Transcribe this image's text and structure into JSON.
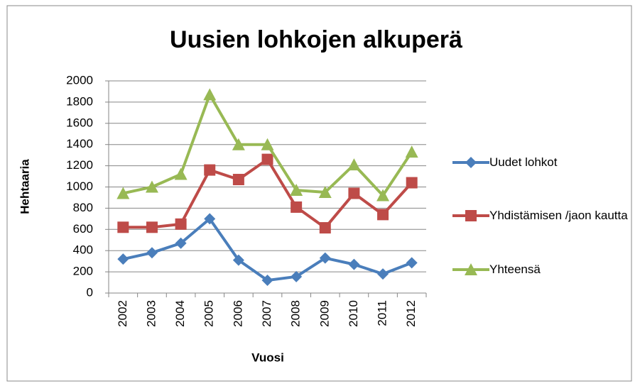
{
  "chart_data": {
    "type": "line",
    "title": "Uusien lohkojen alkuperä",
    "xlabel": "Vuosi",
    "ylabel": "Hehtaaria",
    "categories": [
      "2002",
      "2003",
      "2004",
      "2005",
      "2006",
      "2007",
      "2008",
      "2009",
      "2010",
      "2011",
      "2012"
    ],
    "series": [
      {
        "name": "Uudet lohkot",
        "color": "#4a7ebb",
        "marker": "diamond",
        "values": [
          320,
          380,
          470,
          700,
          310,
          120,
          155,
          330,
          270,
          180,
          285
        ]
      },
      {
        "name": "Yhdistämisen /jaon kautta",
        "color": "#be4b48",
        "marker": "square",
        "values": [
          620,
          620,
          650,
          1160,
          1070,
          1260,
          810,
          615,
          940,
          740,
          1040
        ]
      },
      {
        "name": "Yhteensä",
        "color": "#98b954",
        "marker": "triangle",
        "values": [
          940,
          1000,
          1120,
          1870,
          1400,
          1400,
          970,
          950,
          1210,
          920,
          1330
        ]
      }
    ],
    "ylim": [
      0,
      2000
    ],
    "yticks": [
      0,
      200,
      400,
      600,
      800,
      1000,
      1200,
      1400,
      1600,
      1800,
      2000
    ],
    "grid": true,
    "legend": "right"
  }
}
